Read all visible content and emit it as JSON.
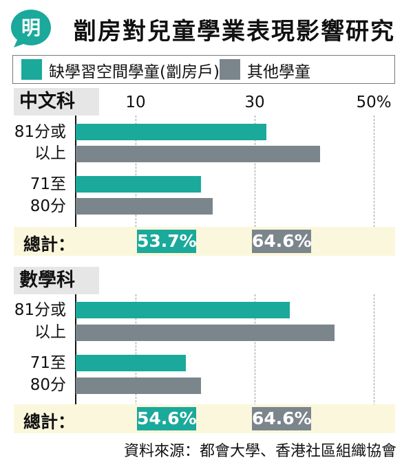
{
  "header": {
    "logo_text": "明",
    "title": "劏房對兒童學業表現影響研究"
  },
  "legend": {
    "items": [
      {
        "label": "缺學習空間學童(劏房戶)",
        "color": "#1aa99a"
      },
      {
        "label": "其他學童",
        "color": "#7b858c"
      }
    ]
  },
  "ticks": [
    "10",
    "30",
    "50%"
  ],
  "chart_data": [
    {
      "type": "bar",
      "orientation": "horizontal",
      "title": "中文科",
      "categories": [
        "81分或以上",
        "71至80分"
      ],
      "category_lines": [
        [
          "81分或",
          "以上"
        ],
        [
          "71至",
          "80分"
        ]
      ],
      "series": [
        {
          "name": "缺學習空間學童(劏房戶)",
          "values": [
            32,
            21
          ]
        },
        {
          "name": "其他學童",
          "values": [
            41,
            23
          ]
        }
      ],
      "xlim": [
        0,
        50
      ],
      "xticks": [
        10,
        30,
        50
      ],
      "total_label": "總計：",
      "totals": [
        "53.7%",
        "64.6%"
      ]
    },
    {
      "type": "bar",
      "orientation": "horizontal",
      "title": "數學科",
      "categories": [
        "81分或以上",
        "71至80分"
      ],
      "category_lines": [
        [
          "81分或",
          "以上"
        ],
        [
          "71至",
          "80分"
        ]
      ],
      "series": [
        {
          "name": "缺學習空間學童(劏房戶)",
          "values": [
            36,
            18.5
          ]
        },
        {
          "name": "其他學童",
          "values": [
            43.5,
            21
          ]
        }
      ],
      "xlim": [
        0,
        50
      ],
      "xticks": [
        10,
        30,
        50
      ],
      "total_label": "總計：",
      "totals": [
        "54.6%",
        "64.6%"
      ]
    }
  ],
  "source": "資料來源：都會大學、香港社區組織協會"
}
